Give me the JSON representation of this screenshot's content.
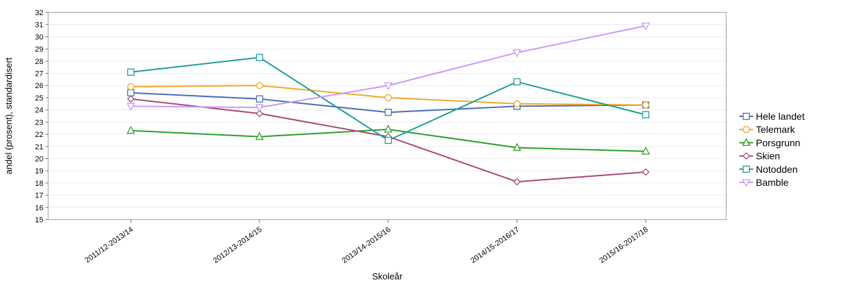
{
  "chart_data": {
    "type": "line",
    "categories": [
      "2011/12-2013/14",
      "2012/13-2014/15",
      "2013/14-2015/16",
      "2014/15-2016/17",
      "2015/16-2017/18"
    ],
    "xlabel": "Skoleår",
    "ylabel": "andel (prosent), standardisert",
    "ylim": [
      15,
      32
    ],
    "yticks": [
      15,
      16,
      17,
      18,
      19,
      20,
      21,
      22,
      23,
      24,
      25,
      26,
      27,
      28,
      29,
      30,
      31,
      32
    ],
    "grid": true,
    "legend_position": "right",
    "series": [
      {
        "name": "Hele landet",
        "color": "#4a6eb5",
        "marker": "square",
        "values": [
          25.4,
          24.9,
          23.8,
          24.3,
          24.4
        ]
      },
      {
        "name": "Telemark",
        "color": "#f0a830",
        "marker": "circle",
        "values": [
          25.9,
          26.0,
          25.0,
          24.5,
          24.4
        ]
      },
      {
        "name": "Porsgrunn",
        "color": "#2ca02c",
        "marker": "triangle-up",
        "values": [
          22.3,
          21.8,
          22.4,
          20.9,
          20.6
        ]
      },
      {
        "name": "Skien",
        "color": "#a8497a",
        "marker": "diamond",
        "values": [
          24.9,
          23.7,
          21.8,
          18.1,
          18.9
        ]
      },
      {
        "name": "Notodden",
        "color": "#1f9e99",
        "marker": "square",
        "values": [
          27.1,
          28.3,
          21.5,
          26.3,
          23.6
        ]
      },
      {
        "name": "Bamble",
        "color": "#c79cf5",
        "marker": "triangle-down",
        "values": [
          24.3,
          24.2,
          26.0,
          28.7,
          30.9
        ]
      }
    ]
  }
}
